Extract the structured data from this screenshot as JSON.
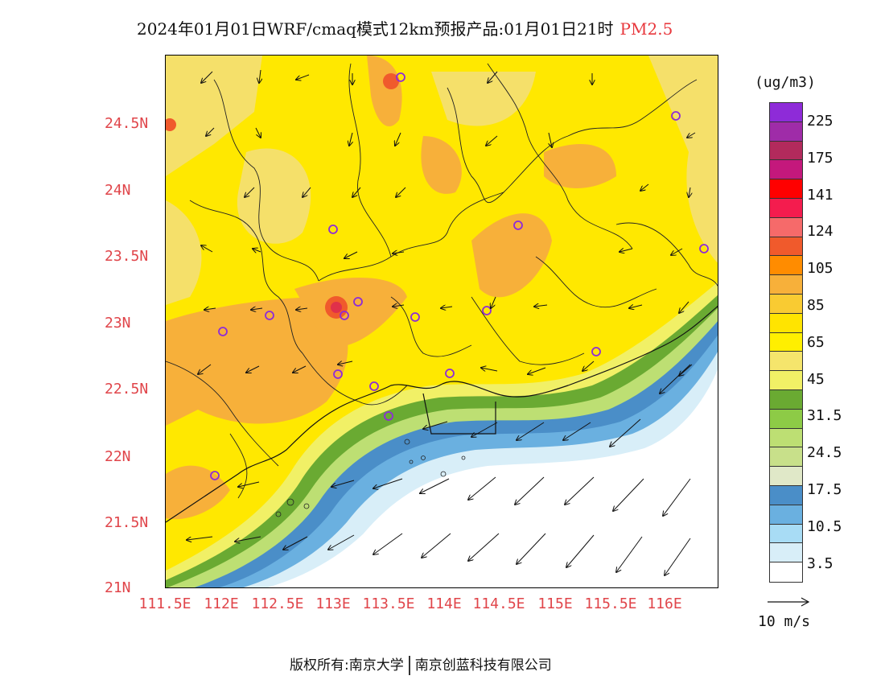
{
  "header": {
    "title": "2024年01月01日WRF/cmaq模式12km预报产品:01月01日21时",
    "pollutant": "PM2.5"
  },
  "axes": {
    "lat_labels": [
      "24.5N",
      "24N",
      "23.5N",
      "23N",
      "22.5N",
      "22N",
      "21.5N",
      "21N"
    ],
    "lon_labels": [
      "111.5E",
      "112E",
      "112.5E",
      "113E",
      "113.5E",
      "114E",
      "114.5E",
      "115E",
      "115.5E",
      "116E"
    ]
  },
  "colorbar": {
    "unit": "(ug/m3)",
    "labels": [
      "225",
      "175",
      "141",
      "124",
      "105",
      "85",
      "65",
      "45",
      "31.5",
      "24.5",
      "17.5",
      "10.5",
      "3.5"
    ],
    "colors": [
      "#8e2bd8",
      "#9f2ca8",
      "#b22a5c",
      "#c4187c",
      "#ff0000",
      "#f41c4e",
      "#f66a6a",
      "#f05a2c",
      "#ff8c00",
      "#f7b03a",
      "#f9cb32",
      "#ffe400",
      "#ffef00",
      "#f5e56c",
      "#f1f066",
      "#6aaa32",
      "#8dcb46",
      "#bddf73",
      "#c8e08a",
      "#e0e8c8",
      "#4a8ec8",
      "#6ab0e0",
      "#a8dcf5",
      "#d8eef8",
      "#ffffff"
    ]
  },
  "wind_reference": {
    "label": "10 m/s"
  },
  "footer": {
    "copyright_left": "版权所有:南京大学",
    "copyright_right": "南京创蓝科技有限公司"
  }
}
